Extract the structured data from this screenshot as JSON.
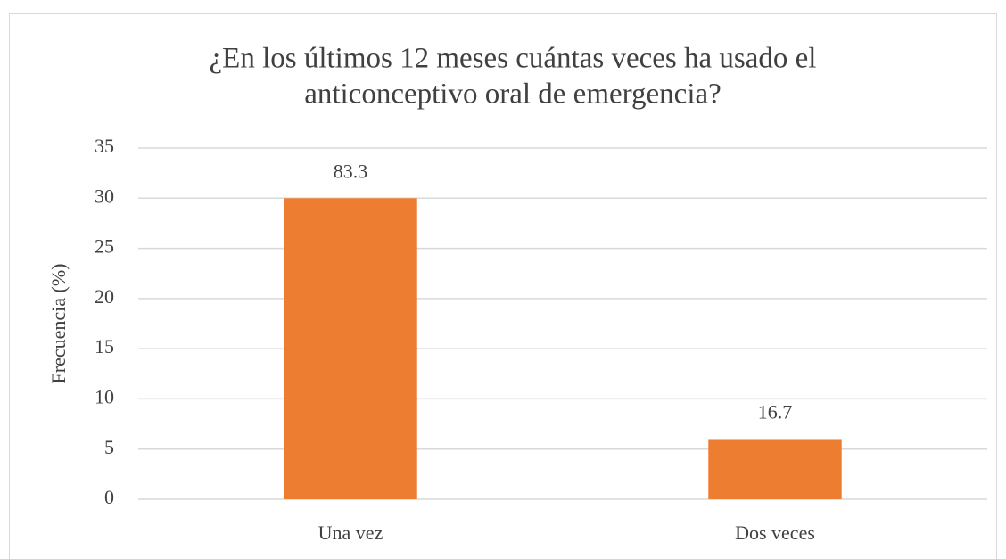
{
  "chart_data": {
    "type": "bar",
    "title": [
      "¿En los últimos 12 meses cuántas veces ha usado el",
      "anticonceptivo oral de emergencia?"
    ],
    "y_label": "Frecuencia (%)",
    "categories": [
      "Una vez",
      "Dos veces"
    ],
    "values": [
      30,
      6
    ],
    "annotations": [
      "83.3",
      "16.7"
    ],
    "color": "#ed7d31",
    "ylim": [
      0,
      35
    ],
    "yticks": [
      0,
      5,
      10,
      15,
      20,
      25,
      30,
      35
    ],
    "grid": true
  }
}
